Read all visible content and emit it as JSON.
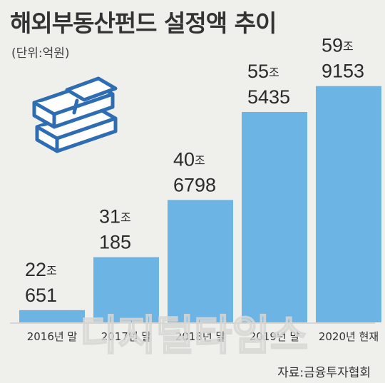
{
  "title": "해외부동산펀드 설정액 추이",
  "unit": "(단위:억원)",
  "source": "자료:금융투자협회",
  "watermark": "디지털타임스",
  "icon": "money-stack-icon",
  "colors": {
    "bar": "#6cb4e4",
    "background": "#efefec",
    "text": "#2b2b2b",
    "icon_stroke": "#2f6db3"
  },
  "chart_data": {
    "type": "bar",
    "categories": [
      "2016년 말",
      "2017년 말",
      "2018년 말",
      "2019년 말",
      "2020년 현재"
    ],
    "values": [
      220651,
      310185,
      406798,
      555435,
      599153
    ],
    "value_labels": [
      {
        "jo": "22",
        "jo_unit": "조",
        "eok": "651"
      },
      {
        "jo": "31",
        "jo_unit": "조",
        "eok": "185"
      },
      {
        "jo": "40",
        "jo_unit": "조",
        "eok": "6798"
      },
      {
        "jo": "55",
        "jo_unit": "조",
        "eok": "5435"
      },
      {
        "jo": "59",
        "jo_unit": "조",
        "eok": "9153"
      }
    ],
    "ylim": [
      200000,
      600000
    ],
    "grid": false,
    "legend": "none"
  }
}
